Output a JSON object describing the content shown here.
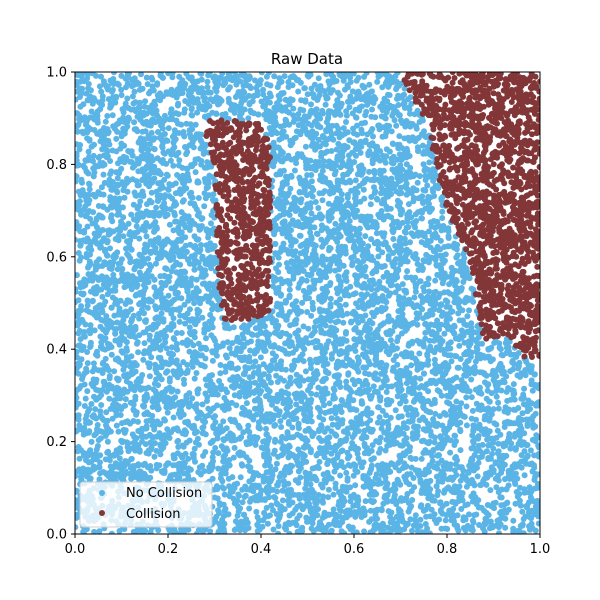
{
  "chart_data": {
    "type": "scatter",
    "title": "Raw Data",
    "xlabel": "",
    "ylabel": "",
    "xlim": [
      0.0,
      1.0
    ],
    "ylim": [
      0.0,
      1.0
    ],
    "x_ticks": [
      "0.0",
      "0.2",
      "0.4",
      "0.6",
      "0.8",
      "1.0"
    ],
    "y_ticks": [
      "0.0",
      "0.2",
      "0.4",
      "0.6",
      "0.8",
      "1.0"
    ],
    "grid": false,
    "legend_position": "lower-left",
    "series": [
      {
        "name": "No Collision",
        "color": "#5ab4e5",
        "description_region": "uniformly scattered over the full unit square excluding obstacle regions"
      },
      {
        "name": "Collision",
        "color": "#833637",
        "regions": [
          {
            "shape": "polygon",
            "points": [
              [
                0.29,
                0.9
              ],
              [
                0.4,
                0.89
              ],
              [
                0.42,
                0.84
              ],
              [
                0.42,
                0.48
              ],
              [
                0.38,
                0.46
              ],
              [
                0.32,
                0.46
              ],
              [
                0.31,
                0.52
              ],
              [
                0.3,
                0.8
              ],
              [
                0.28,
                0.86
              ]
            ]
          },
          {
            "shape": "polygon",
            "points": [
              [
                0.7,
                1.0
              ],
              [
                1.0,
                1.0
              ],
              [
                1.0,
                0.38
              ],
              [
                0.98,
                0.37
              ],
              [
                0.95,
                0.4
              ],
              [
                0.93,
                0.43
              ],
              [
                0.88,
                0.42
              ],
              [
                0.86,
                0.52
              ],
              [
                0.84,
                0.62
              ],
              [
                0.8,
                0.7
              ],
              [
                0.78,
                0.78
              ],
              [
                0.76,
                0.88
              ],
              [
                0.72,
                0.95
              ]
            ]
          }
        ]
      }
    ]
  }
}
